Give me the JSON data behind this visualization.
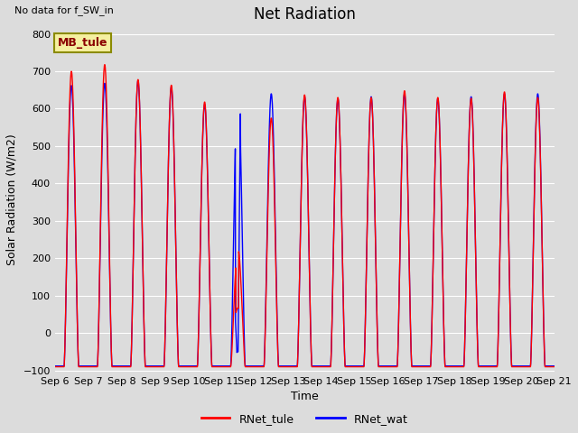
{
  "title": "Net Radiation",
  "no_data_text": "No data for f_SW_in",
  "ylabel": "Solar Radiation (W/m2)",
  "xlabel": "Time",
  "ylim": [
    -105,
    820
  ],
  "yticks": [
    -100,
    0,
    100,
    200,
    300,
    400,
    500,
    600,
    700,
    800
  ],
  "legend_box_label": "MB_tule",
  "legend_entries": [
    "RNet_tule",
    "RNet_wat"
  ],
  "line_colors": [
    "red",
    "blue"
  ],
  "background_color": "#dcdcdc",
  "plot_bg_color": "#dcdcdc",
  "title_fontsize": 12,
  "label_fontsize": 9,
  "tick_fontsize": 8,
  "n_days": 15,
  "peak_tule": [
    700,
    718,
    678,
    663,
    618,
    225,
    575,
    637,
    630,
    630,
    648,
    630,
    628,
    645,
    630
  ],
  "peak_wat": [
    662,
    668,
    675,
    658,
    612,
    667,
    640,
    632,
    627,
    632,
    640,
    627,
    632,
    640,
    640
  ],
  "night_tule": [
    -90,
    -90,
    -90,
    -90,
    -90,
    -90,
    -90,
    -90,
    -90,
    -90,
    -90,
    -90,
    -90,
    -90,
    -90
  ],
  "night_wat": [
    -88,
    -88,
    -88,
    -88,
    -88,
    -88,
    -88,
    -88,
    -88,
    -88,
    -88,
    -88,
    -88,
    -88,
    -88
  ],
  "day_start": 0.28,
  "day_end": 0.72,
  "sep11_dip_tule": true,
  "sep11_dip_wat": true,
  "x_tick_labels": [
    "Sep 6",
    "Sep 7",
    "Sep 8",
    "Sep 9",
    "Sep 10",
    "Sep 11",
    "Sep 12",
    "Sep 13",
    "Sep 14",
    "Sep 15",
    "Sep 16",
    "Sep 17",
    "Sep 18",
    "Sep 19",
    "Sep 20",
    "Sep 21"
  ]
}
